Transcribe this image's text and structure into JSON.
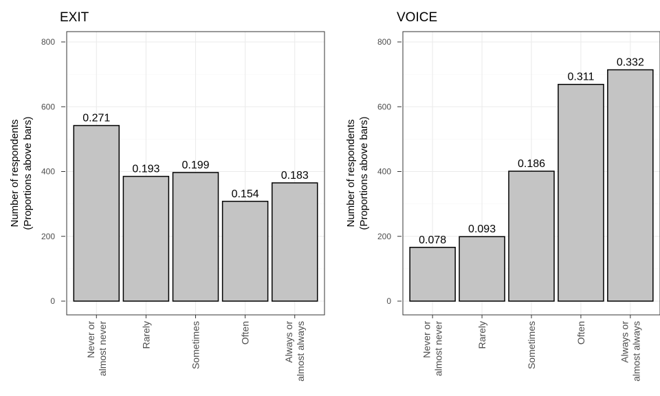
{
  "chart_data": [
    {
      "type": "bar",
      "title": "EXIT",
      "ylabel_line1": "Number of respondents",
      "ylabel_line2": "(Proportions above bars)",
      "xlabel": "",
      "categories": [
        [
          "Never or",
          "almost never"
        ],
        [
          "Rarely"
        ],
        [
          "Sometimes"
        ],
        [
          "Often"
        ],
        [
          "Always or",
          "almost always"
        ]
      ],
      "values": [
        542,
        385,
        397,
        308,
        365
      ],
      "labels": [
        "0.271",
        "0.193",
        "0.199",
        "0.154",
        "0.183"
      ],
      "ylim": [
        0,
        840
      ],
      "yticks": [
        0,
        200,
        400,
        600,
        800
      ],
      "grid": true,
      "bar_color": "#c4c4c4"
    },
    {
      "type": "bar",
      "title": "VOICE",
      "ylabel_line1": "Number of respondents",
      "ylabel_line2": "(Proportions above bars)",
      "xlabel": "",
      "categories": [
        [
          "Never or",
          "almost never"
        ],
        [
          "Rarely"
        ],
        [
          "Sometimes"
        ],
        [
          "Often"
        ],
        [
          "Always or",
          "almost always"
        ]
      ],
      "values": [
        166,
        199,
        401,
        669,
        714
      ],
      "labels": [
        "0.078",
        "0.093",
        "0.186",
        "0.311",
        "0.332"
      ],
      "ylim": [
        0,
        840
      ],
      "yticks": [
        0,
        200,
        400,
        600,
        800
      ],
      "grid": true,
      "bar_color": "#c4c4c4"
    }
  ]
}
